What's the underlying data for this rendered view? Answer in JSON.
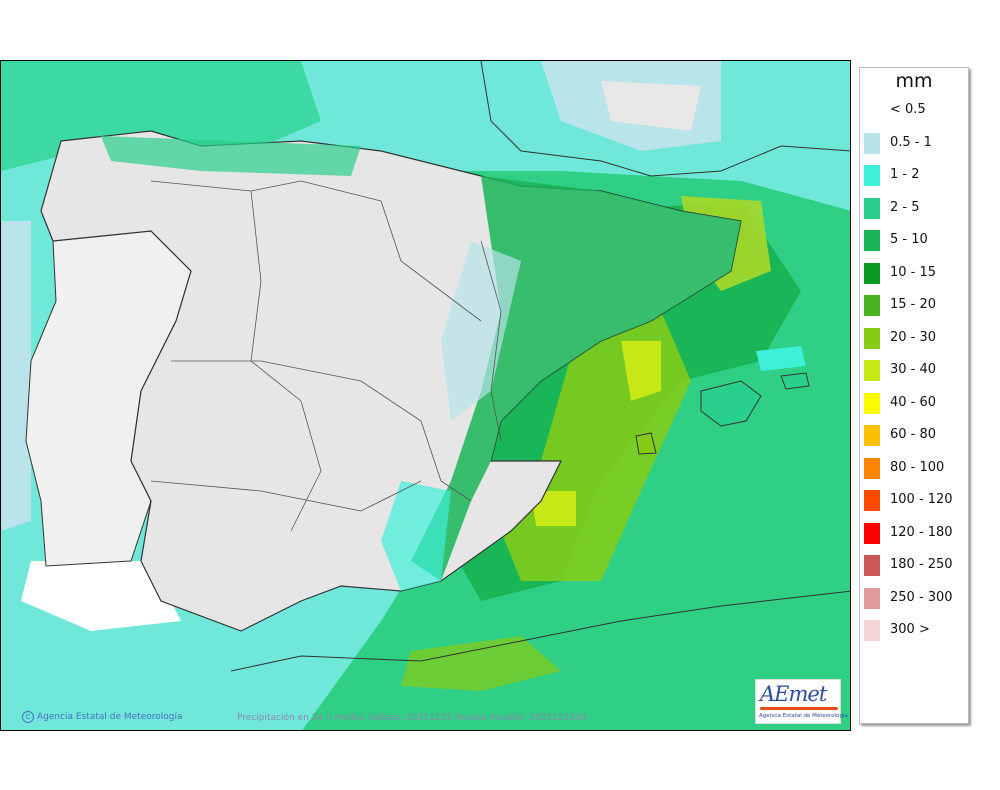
{
  "legend": {
    "unit": "mm",
    "classes": [
      {
        "label": "< 0.5",
        "color": "#ffffff"
      },
      {
        "label": "0.5 - 1",
        "color": "#b7e2e8"
      },
      {
        "label": "1 - 2",
        "color": "#3ff0d8"
      },
      {
        "label": "2 - 5",
        "color": "#29cf8c"
      },
      {
        "label": "5 - 10",
        "color": "#19b557"
      },
      {
        "label": "10 - 15",
        "color": "#0a9a21"
      },
      {
        "label": "15 - 20",
        "color": "#4bb21f"
      },
      {
        "label": "20 - 30",
        "color": "#86cc16"
      },
      {
        "label": "30 - 40",
        "color": "#c6e816"
      },
      {
        "label": "40 - 60",
        "color": "#fbfb00"
      },
      {
        "label": "60 - 80",
        "color": "#fbc000"
      },
      {
        "label": "80 - 100",
        "color": "#fb8400"
      },
      {
        "label": "100 - 120",
        "color": "#fb4a00"
      },
      {
        "label": "120 - 180",
        "color": "#fb0000"
      },
      {
        "label": "180 - 250",
        "color": "#cd5a5a"
      },
      {
        "label": "250 - 300",
        "color": "#e29a9a"
      },
      {
        "label": "300 >",
        "color": "#f4d6d6"
      }
    ]
  },
  "footer": {
    "credit": "Agencia Estatal de Meteorología",
    "caption": "Precipitación en 24 h media. Validez: 20251225 Pasada modelo: 2025122200"
  },
  "logo": {
    "name": "AEmet",
    "subtitle": "Agencia Estatal de Meteorología"
  },
  "colors": {
    "sea_background": "#7ad9cf",
    "land_dry": "#e6e6e6",
    "portugal_land": "#f0f0f0",
    "border_line": "#333333"
  }
}
